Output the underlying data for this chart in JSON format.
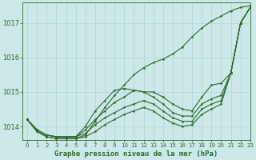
{
  "xlabel": "Graphe pression niveau de la mer (hPa)",
  "ylim": [
    1013.6,
    1017.6
  ],
  "xlim": [
    -0.5,
    23
  ],
  "yticks": [
    1014,
    1015,
    1016,
    1017
  ],
  "xticks": [
    0,
    1,
    2,
    3,
    4,
    5,
    6,
    7,
    8,
    9,
    10,
    11,
    12,
    13,
    14,
    15,
    16,
    17,
    18,
    19,
    20,
    21,
    22,
    23
  ],
  "bg_color": "#cce8e8",
  "grid_color": "#b0d4d4",
  "line_color": "#2d6a2d",
  "series": [
    [
      1014.2,
      1013.9,
      1013.75,
      1013.7,
      1013.7,
      1013.7,
      1014.0,
      1014.45,
      1014.75,
      1015.05,
      1015.1,
      1015.05,
      1015.0,
      1015.0,
      1014.85,
      1014.65,
      1014.5,
      1014.45,
      1014.85,
      1015.2,
      1015.25,
      1015.55,
      1017.0,
      1017.45
    ],
    [
      1014.2,
      1013.9,
      1013.75,
      1013.7,
      1013.7,
      1013.7,
      1013.9,
      1014.2,
      1014.45,
      1014.7,
      1014.85,
      1015.05,
      1015.0,
      1014.85,
      1014.65,
      1014.4,
      1014.3,
      1014.3,
      1014.65,
      1014.8,
      1014.9,
      1015.55,
      1017.0,
      1017.45
    ],
    [
      1014.2,
      1013.9,
      1013.75,
      1013.7,
      1013.7,
      1013.7,
      1013.8,
      1014.05,
      1014.25,
      1014.4,
      1014.55,
      1014.65,
      1014.75,
      1014.65,
      1014.45,
      1014.25,
      1014.15,
      1014.15,
      1014.5,
      1014.65,
      1014.75,
      1015.55,
      1017.0,
      1017.45
    ],
    [
      1014.2,
      1013.85,
      1013.7,
      1013.65,
      1013.65,
      1013.65,
      1013.7,
      1013.85,
      1014.05,
      1014.2,
      1014.35,
      1014.45,
      1014.55,
      1014.45,
      1014.25,
      1014.1,
      1014.0,
      1014.05,
      1014.35,
      1014.5,
      1014.65,
      1015.55,
      1017.0,
      1017.45
    ],
    [
      1014.2,
      1013.85,
      1013.7,
      1013.65,
      1013.65,
      1013.65,
      1013.75,
      1014.15,
      1014.55,
      1014.9,
      1015.2,
      1015.5,
      1015.7,
      1015.85,
      1015.95,
      1016.1,
      1016.3,
      1016.6,
      1016.85,
      1017.05,
      1017.2,
      1017.35,
      1017.45,
      1017.5
    ]
  ]
}
